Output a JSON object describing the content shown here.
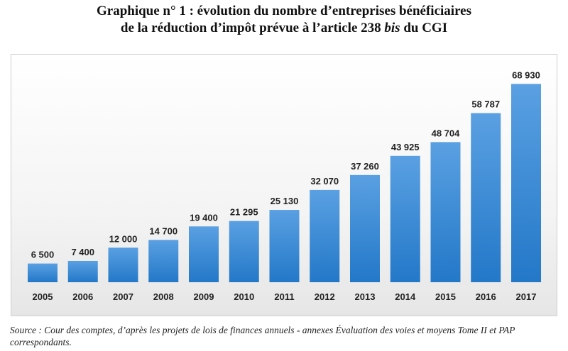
{
  "title": {
    "line1": "Graphique n° 1 : évolution du nombre d’entreprises bénéficiaires",
    "line2_a": "de la réduction d’impôt prévue à l’article 238 ",
    "line2_italic": "bis",
    "line2_b": " du CGI"
  },
  "source": "Source : Cour des comptes, d’après les projets de lois de finances annuels - annexes Évaluation des voies et moyens Tome II et PAP correspondants.",
  "chart_data": {
    "type": "bar",
    "categories": [
      "2005",
      "2006",
      "2007",
      "2008",
      "2009",
      "2010",
      "2011",
      "2012",
      "2013",
      "2014",
      "2015",
      "2016",
      "2017"
    ],
    "values": [
      6500,
      7400,
      12000,
      14700,
      19400,
      21295,
      25130,
      32070,
      37260,
      43925,
      48704,
      58787,
      68930
    ],
    "data_labels": [
      "6 500",
      "7 400",
      "12 000",
      "14 700",
      "19 400",
      "21 295",
      "25 130",
      "32 070",
      "37 260",
      "43 925",
      "48 704",
      "58 787",
      "68 930"
    ],
    "ylim": [
      0,
      70000
    ],
    "grid": false,
    "legend": "none",
    "bar_color": "#2e7fd0"
  }
}
